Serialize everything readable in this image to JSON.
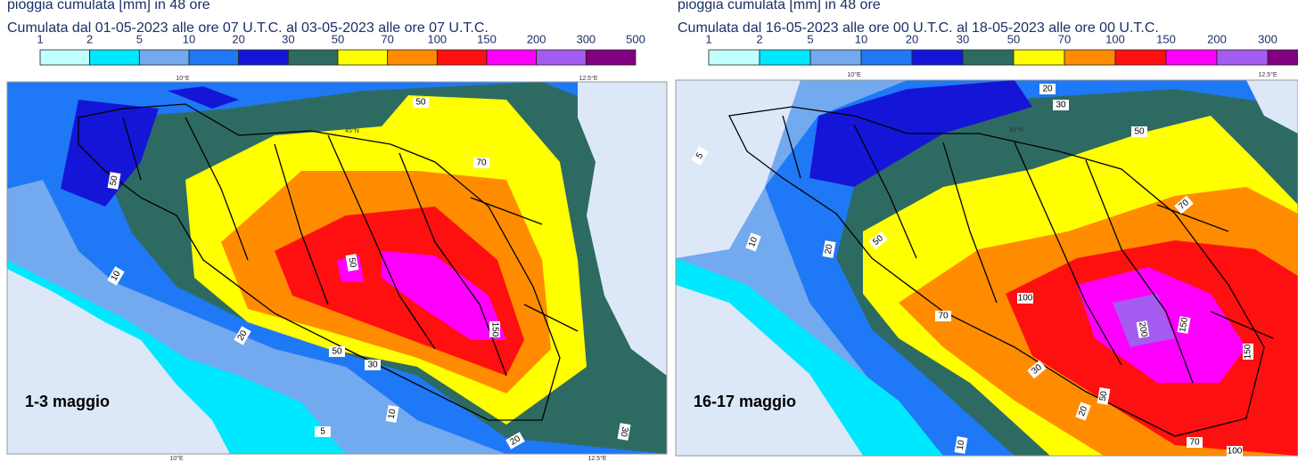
{
  "panels": [
    {
      "title": "pioggia cumulata [mm] in 48 ore",
      "subtitle": "Cumulata dal 01-05-2023 alle ore 07 U.T.C. al 03-05-2023 alle ore 07 U.T.C.",
      "legend_labels": [
        1,
        2,
        5,
        10,
        20,
        30,
        50,
        70,
        100,
        150,
        200,
        300,
        500
      ],
      "legend_colors": [
        "#c2ffff",
        "#00e8ff",
        "#73a9ee",
        "#1f78f5",
        "#1515d8",
        "#2d6b62",
        "#ffff00",
        "#ff8c00",
        "#ff1010",
        "#ff00ff",
        "#a45cf0",
        "#800080"
      ],
      "axis_labels": [
        "10°E",
        "12.5°E",
        "45°N",
        "10°E",
        "12.5°E"
      ],
      "period": "1-3 maggio",
      "contour_labels": [
        "50",
        "70",
        "50",
        "10",
        "20",
        "50",
        "30",
        "10",
        "5",
        "150",
        "30",
        "20",
        "50"
      ]
    },
    {
      "title": "pioggia cumulata [mm] in 48 ore",
      "subtitle": "Cumulata dal 16-05-2023 alle ore 00 U.T.C. al 18-05-2023 alle ore 00 U.T.C.",
      "legend_labels": [
        1,
        2,
        5,
        10,
        20,
        30,
        50,
        70,
        100,
        150,
        200,
        300
      ],
      "legend_colors": [
        "#c2ffff",
        "#00e8ff",
        "#73a9ee",
        "#1f78f5",
        "#1515d8",
        "#2d6b62",
        "#ffff00",
        "#ff8c00",
        "#ff1010",
        "#ff00ff",
        "#a45cf0",
        "#800080"
      ],
      "axis_labels": [
        "10°E",
        "12.5°E",
        "45°N"
      ],
      "period": "16-17 maggio",
      "contour_labels": [
        "20",
        "30",
        "50",
        "70",
        "5",
        "10",
        "20",
        "50",
        "100",
        "70",
        "200",
        "150",
        "30",
        "20",
        "10",
        "70",
        "100",
        "50",
        "150"
      ]
    }
  ]
}
